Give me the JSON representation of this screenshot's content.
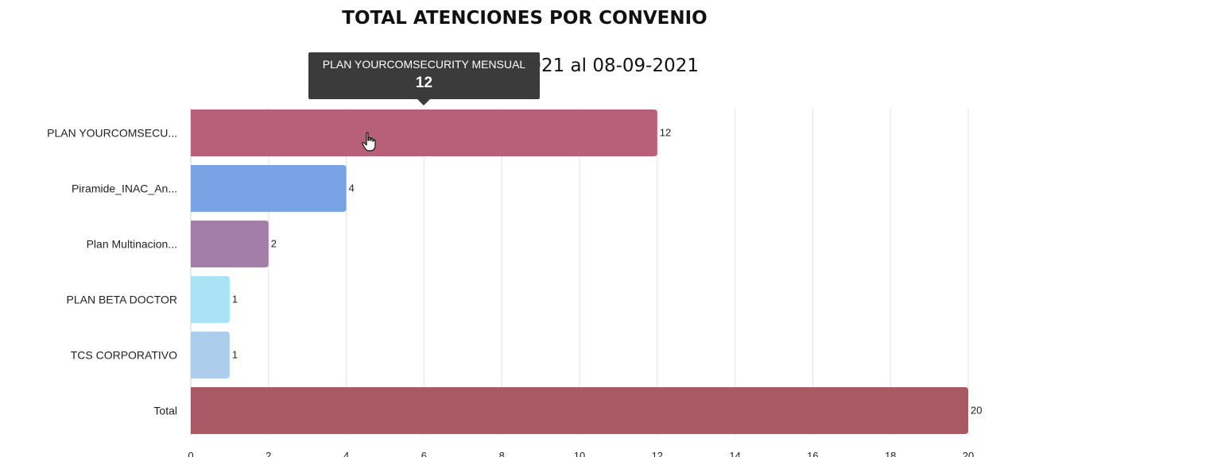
{
  "chart_data": {
    "type": "bar",
    "orientation": "horizontal",
    "title": "TOTAL ATENCIONES POR CONVENIO",
    "subtitle": "Periodo del 02-09-2021 al 08-09-2021",
    "categories": [
      "PLAN YOURCOMSECU...",
      "Piramide_INAC_An...",
      "Plan Multinacion...",
      "PLAN BETA DOCTOR",
      "TCS CORPORATIVO",
      "Total"
    ],
    "values": [
      12,
      4,
      2,
      1,
      1,
      20
    ],
    "colors": [
      "#b8607a",
      "#7aa3e5",
      "#a27ea8",
      "#aae3f5",
      "#adcded",
      "#a95963"
    ],
    "xlim": [
      0,
      20
    ],
    "xticks": [
      0,
      2,
      4,
      6,
      8,
      10,
      12,
      14,
      16,
      18,
      20
    ],
    "grid": true,
    "show_data_labels": true
  },
  "tooltip": {
    "title": "PLAN YOURCOMSECURITY MENSUAL",
    "value": "12",
    "color": "#3b3b3b"
  },
  "cursor": {
    "icon": "hand-pointer-icon"
  }
}
